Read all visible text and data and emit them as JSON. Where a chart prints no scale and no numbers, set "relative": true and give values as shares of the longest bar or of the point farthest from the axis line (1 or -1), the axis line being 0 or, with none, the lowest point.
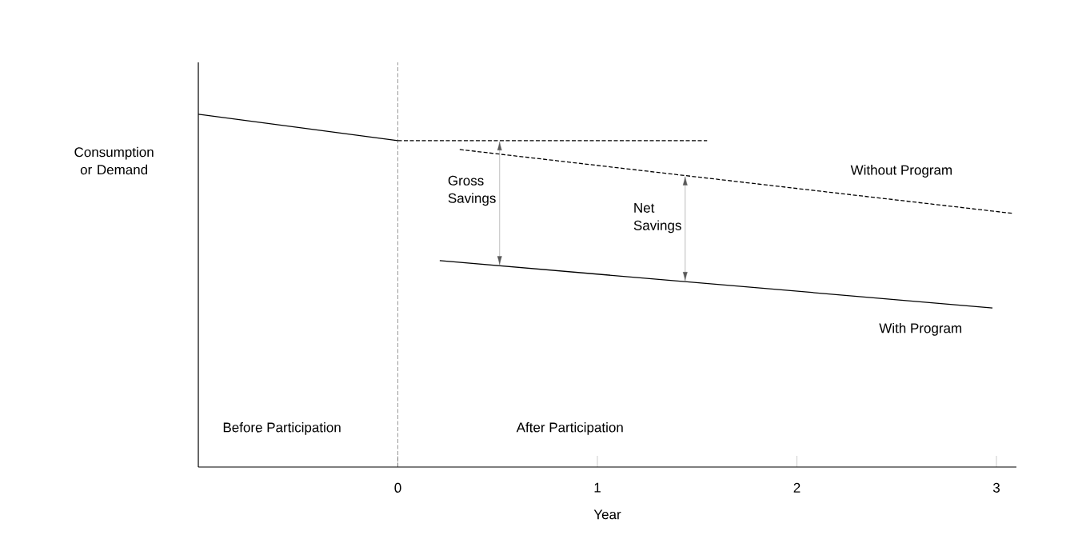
{
  "chart_data": {
    "type": "line",
    "relative": true,
    "xlabel": "Year",
    "ylabel": "Consumption or Demand",
    "xlim": [
      -1,
      3.1
    ],
    "xticks": [
      0,
      1,
      2,
      3
    ],
    "series": [
      {
        "x": [
          -1,
          0
        ],
        "values": [
          1.0,
          0.925
        ],
        "color": "#000000",
        "line_style": "solid"
      },
      {
        "x": [
          0,
          1.55
        ],
        "values": [
          0.925,
          0.925
        ],
        "color": "#000000",
        "line_style": "dashed"
      },
      {
        "name": "Without Program",
        "x": [
          0.31,
          3.08
        ],
        "values": [
          0.9,
          0.719
        ],
        "color": "#000000",
        "line_style": "dashed"
      },
      {
        "name": "With Program",
        "x": [
          0.21,
          2.98
        ],
        "values": [
          0.585,
          0.451
        ],
        "color": "#000000",
        "line_style": "solid"
      }
    ],
    "ref_lines": [
      {
        "axis": "x",
        "value": 0,
        "line_style": "dashed",
        "color": "#000000"
      }
    ],
    "annotations": [
      "Before Participation",
      "After Participation",
      {
        "text": "Gross Savings",
        "x": 0.51,
        "y": 0.925
      },
      {
        "text": "Net Savings",
        "x": 1.44,
        "y": 0.826
      }
    ]
  }
}
